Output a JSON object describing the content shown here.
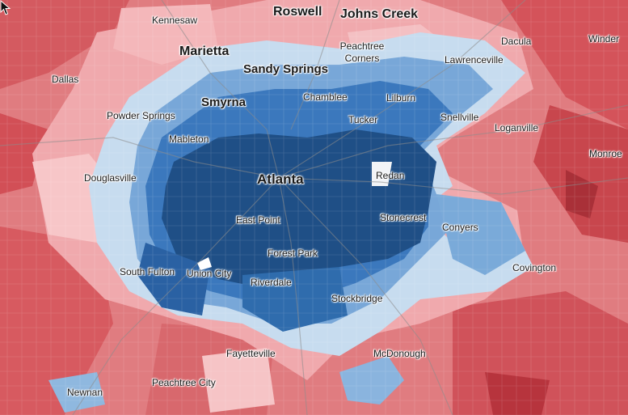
{
  "legend_colors": {
    "strong_dem": "#1f4f86",
    "dem": "#2f6cad",
    "lean_dem": "#6b9fd4",
    "tilt_dem": "#c6ddf0",
    "tilt_rep": "#f4bcc0",
    "lean_rep": "#e98b8d",
    "rep": "#d6545a",
    "strong_rep": "#b83038",
    "roads": "#9a9a9a"
  },
  "places": {
    "kennesaw": "Kennesaw",
    "roswell": "Roswell",
    "johns_creek": "Johns Creek",
    "dacula": "Dacula",
    "winder": "Winder",
    "marietta": "Marietta",
    "peachtree_corners": "Peachtree\nCorners",
    "lawrenceville": "Lawrenceville",
    "dallas": "Dallas",
    "sandy_springs": "Sandy Springs",
    "smyrna": "Smyrna",
    "chamblee": "Chamblee",
    "lilburn": "Lilburn",
    "powder_springs": "Powder Springs",
    "snellville": "Snellville",
    "tucker": "Tucker",
    "loganville": "Loganville",
    "mableton": "Mableton",
    "monroe": "Monroe",
    "douglasville": "Douglasville",
    "atlanta": "Atlanta",
    "redan": "Redan",
    "east_point": "East Point",
    "stonecrest": "Stonecrest",
    "conyers": "Conyers",
    "forest_park": "Forest Park",
    "south_fulton": "South Fulton",
    "union_city": "Union City",
    "covington": "Covington",
    "riverdale": "Riverdale",
    "stockbridge": "Stockbridge",
    "fayetteville": "Fayetteville",
    "mcdonough": "McDonough",
    "peachtree_city": "Peachtree City",
    "newnan": "Newnan"
  }
}
